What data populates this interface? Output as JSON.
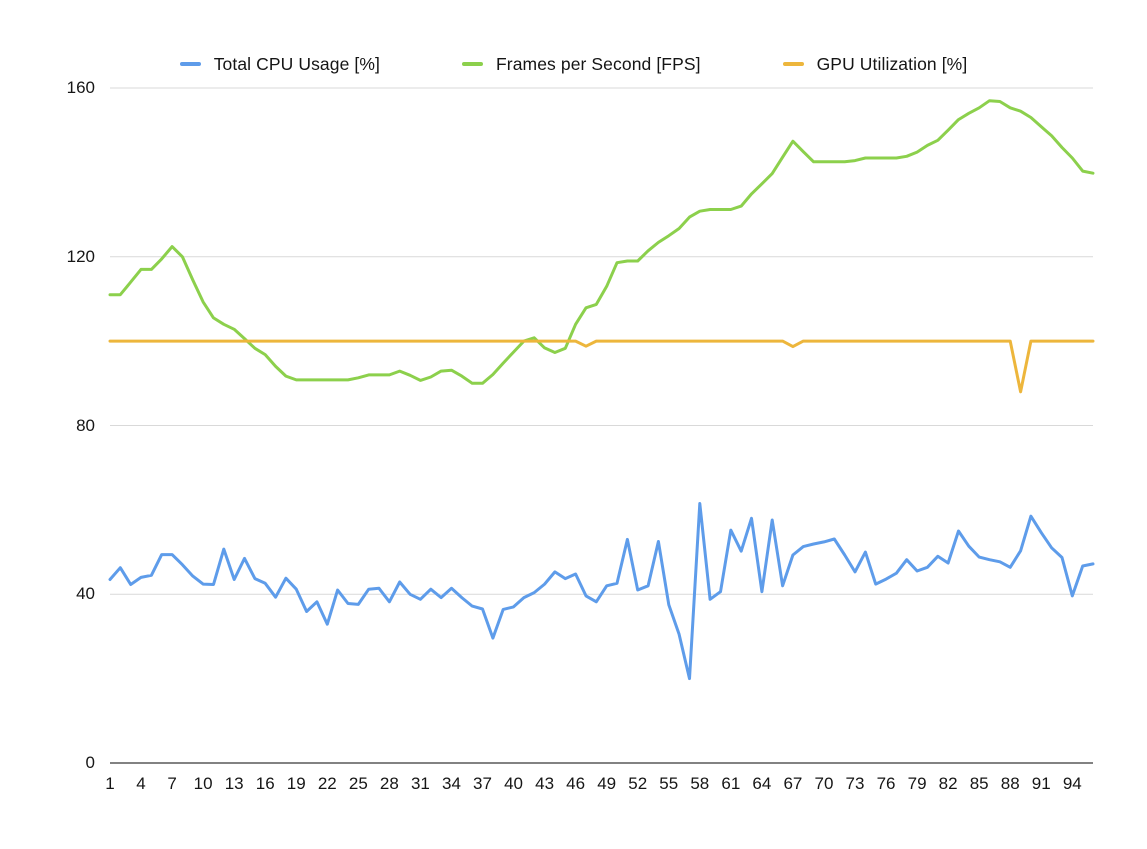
{
  "chart_data": {
    "type": "line",
    "n_points": 96,
    "x": [
      1,
      2,
      3,
      4,
      5,
      6,
      7,
      8,
      9,
      10,
      11,
      12,
      13,
      14,
      15,
      16,
      17,
      18,
      19,
      20,
      21,
      22,
      23,
      24,
      25,
      26,
      27,
      28,
      29,
      30,
      31,
      32,
      33,
      34,
      35,
      36,
      37,
      38,
      39,
      40,
      41,
      42,
      43,
      44,
      45,
      46,
      47,
      48,
      49,
      50,
      51,
      52,
      53,
      54,
      55,
      56,
      57,
      58,
      59,
      60,
      61,
      62,
      63,
      64,
      65,
      66,
      67,
      68,
      69,
      70,
      71,
      72,
      73,
      74,
      75,
      76,
      77,
      78,
      79,
      80,
      81,
      82,
      83,
      84,
      85,
      86,
      87,
      88,
      89,
      90,
      91,
      92,
      93,
      94,
      95,
      96
    ],
    "x_tick_labels": [
      1,
      4,
      7,
      10,
      13,
      16,
      19,
      22,
      25,
      28,
      31,
      34,
      37,
      40,
      43,
      46,
      49,
      52,
      55,
      58,
      61,
      64,
      67,
      70,
      73,
      76,
      79,
      82,
      85,
      88,
      91,
      94
    ],
    "y_ticks": [
      0,
      40,
      80,
      120,
      160
    ],
    "ylim": [
      0,
      160
    ],
    "grid": true,
    "legend_position": "top",
    "series": [
      {
        "name": "Total CPU Usage [%]",
        "key": "cpu",
        "color": "#5e9cea",
        "values": [
          43.5,
          46.3,
          42.3,
          44,
          44.5,
          49.4,
          49.4,
          47,
          44.3,
          42.4,
          42.3,
          50.7,
          43.5,
          48.5,
          43.7,
          42.6,
          39.3,
          43.8,
          41.2,
          35.9,
          38.2,
          32.9,
          41,
          37.8,
          37.6,
          41.2,
          41.4,
          38.2,
          42.9,
          40,
          38.8,
          41.2,
          39.2,
          41.4,
          39.2,
          37.2,
          36.5,
          29.6,
          36.4,
          37,
          39.2,
          40.4,
          42.4,
          45.3,
          43.7,
          44.8,
          39.6,
          38.2,
          42,
          42.6,
          53,
          41,
          42,
          52.5,
          37.5,
          30.5,
          20,
          61.5,
          38.8,
          40.6,
          55.2,
          50.2,
          58,
          40.6,
          57.6,
          42,
          49.3,
          51.3,
          51.9,
          52.4,
          53.1,
          49.3,
          45.3,
          50,
          42.4,
          43.6,
          45,
          48.2,
          45.5,
          46.4,
          49,
          47.4,
          55,
          51.4,
          48.8,
          48.2,
          47.7,
          46.4,
          50.3,
          58.5,
          54.6,
          51,
          48.7,
          39.6,
          46.7,
          47.2
        ]
      },
      {
        "name": "Frames per Second [FPS]",
        "key": "fps",
        "color": "#8cd04c",
        "values": [
          111,
          111,
          114,
          117,
          117,
          119.5,
          122.4,
          120,
          114.5,
          109.3,
          105.5,
          104,
          102.8,
          100.6,
          98.3,
          96.8,
          94,
          91.7,
          90.8,
          90.8,
          90.8,
          90.8,
          90.8,
          90.8,
          91.3,
          92,
          92,
          92,
          92.9,
          91.9,
          90.7,
          91.5,
          92.9,
          93.1,
          91.7,
          90,
          90,
          92.1,
          94.8,
          97.4,
          100,
          100.8,
          98.4,
          97.3,
          98.3,
          104,
          107.9,
          108.7,
          113,
          118.6,
          119,
          119,
          121.4,
          123.4,
          125,
          126.7,
          129.4,
          130.8,
          131.2,
          131.2,
          131.2,
          132,
          134.9,
          137.3,
          139.7,
          143.6,
          147.4,
          144.9,
          142.5,
          142.5,
          142.5,
          142.5,
          142.8,
          143.4,
          143.4,
          143.4,
          143.4,
          143.8,
          144.8,
          146.4,
          147.6,
          150,
          152.5,
          154,
          155.3,
          157,
          156.8,
          155.3,
          154.5,
          153,
          150.8,
          148.7,
          145.9,
          143.4,
          140.3,
          139.8
        ]
      },
      {
        "name": "GPU Utilization [%]",
        "key": "gpu",
        "color": "#edb63c",
        "values": [
          100,
          100,
          100,
          100,
          100,
          100,
          100,
          100,
          100,
          100,
          100,
          100,
          100,
          100,
          100,
          100,
          100,
          100,
          100,
          100,
          100,
          100,
          100,
          100,
          100,
          100,
          100,
          100,
          100,
          100,
          100,
          100,
          100,
          100,
          100,
          100,
          100,
          100,
          100,
          100,
          100,
          100,
          100,
          100,
          100,
          100,
          98.8,
          100,
          100,
          100,
          100,
          100,
          100,
          100,
          100,
          100,
          100,
          100,
          100,
          100,
          100,
          100,
          100,
          100,
          100,
          100,
          98.7,
          100,
          100,
          100,
          100,
          100,
          100,
          100,
          100,
          100,
          100,
          100,
          100,
          100,
          100,
          100,
          100,
          100,
          100,
          100,
          100,
          100,
          88,
          100,
          100,
          100,
          100,
          100,
          100,
          100
        ]
      }
    ]
  },
  "layout_colors": {
    "gridline": "#d9d9d9",
    "baseline": "#595959",
    "tick_text": "#161616"
  }
}
